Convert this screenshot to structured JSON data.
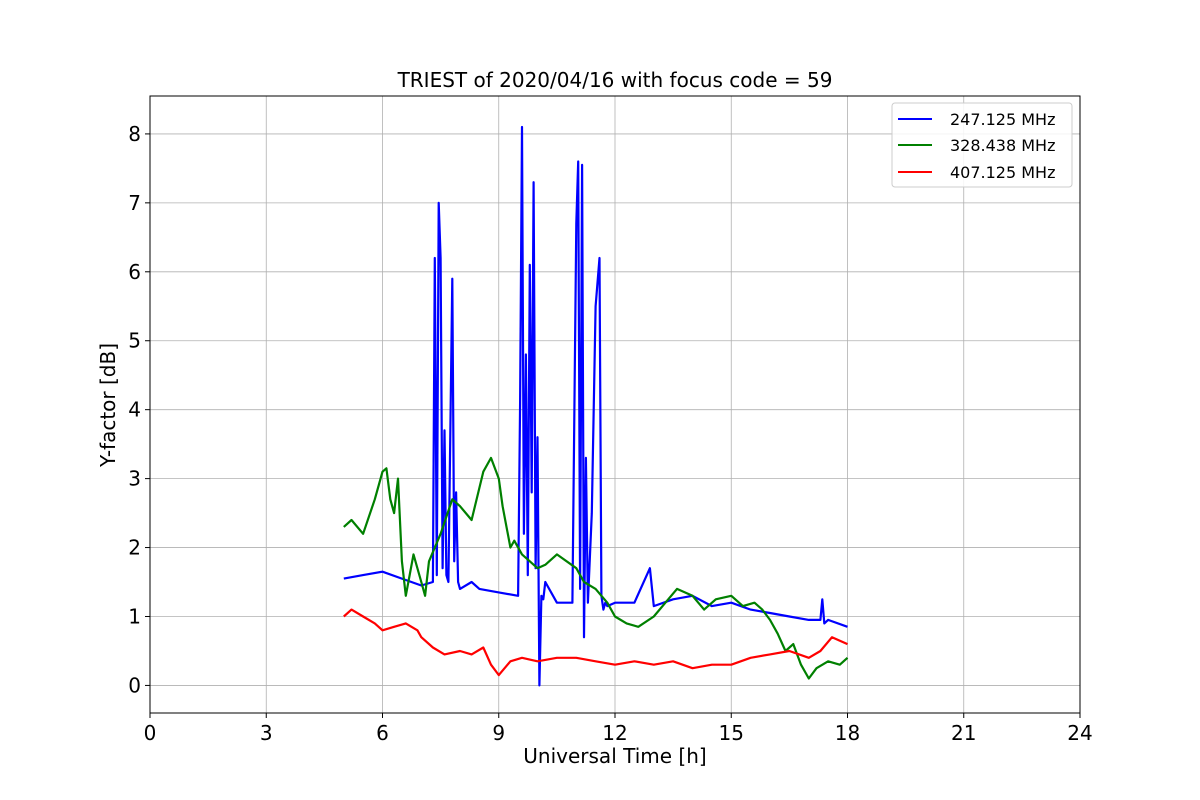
{
  "chart_data": {
    "type": "line",
    "title": "TRIEST of 2020/04/16 with focus code = 59",
    "xlabel": "Universal Time [h]",
    "ylabel": "Y-factor [dB]",
    "xlim": [
      0,
      24
    ],
    "ylim": [
      -0.4,
      8.55
    ],
    "xticks": [
      0,
      3,
      6,
      9,
      12,
      15,
      18,
      21,
      24
    ],
    "yticks": [
      0,
      1,
      2,
      3,
      4,
      5,
      6,
      7,
      8
    ],
    "grid": true,
    "legend_position": "top-right",
    "series": [
      {
        "name": "247.125 MHz",
        "color": "#0000ff",
        "x": [
          5.0,
          5.5,
          6.0,
          6.5,
          7.0,
          7.3,
          7.35,
          7.4,
          7.45,
          7.5,
          7.55,
          7.6,
          7.65,
          7.7,
          7.8,
          7.85,
          7.9,
          7.95,
          8.0,
          8.3,
          8.5,
          9.0,
          9.5,
          9.55,
          9.6,
          9.65,
          9.7,
          9.75,
          9.8,
          9.85,
          9.9,
          9.95,
          10.0,
          10.05,
          10.1,
          10.15,
          10.2,
          10.5,
          10.9,
          11.0,
          11.05,
          11.1,
          11.15,
          11.2,
          11.25,
          11.3,
          11.4,
          11.5,
          11.6,
          11.65,
          11.7,
          11.75,
          11.8,
          12.0,
          12.5,
          12.9,
          13.0,
          13.5,
          14.0,
          14.5,
          15.0,
          15.5,
          16.0,
          16.5,
          17.0,
          17.3,
          17.35,
          17.4,
          17.5,
          18.0
        ],
        "y": [
          1.55,
          1.6,
          1.65,
          1.55,
          1.45,
          1.5,
          6.2,
          1.6,
          7.0,
          6.2,
          1.7,
          3.7,
          1.6,
          1.5,
          5.9,
          1.8,
          2.8,
          1.5,
          1.4,
          1.5,
          1.4,
          1.35,
          1.3,
          4.1,
          8.1,
          2.2,
          4.8,
          1.6,
          6.1,
          2.8,
          7.3,
          1.7,
          3.6,
          0.0,
          1.3,
          1.25,
          1.5,
          1.2,
          1.2,
          6.7,
          7.6,
          1.4,
          7.55,
          0.7,
          3.3,
          1.2,
          2.5,
          5.5,
          6.2,
          1.3,
          1.1,
          1.2,
          1.15,
          1.2,
          1.2,
          1.7,
          1.15,
          1.25,
          1.3,
          1.15,
          1.2,
          1.1,
          1.05,
          1.0,
          0.95,
          0.95,
          1.25,
          0.9,
          0.95,
          0.85
        ]
      },
      {
        "name": "328.438 MHz",
        "color": "#008000",
        "x": [
          5.0,
          5.2,
          5.5,
          5.8,
          6.0,
          6.1,
          6.2,
          6.3,
          6.4,
          6.5,
          6.6,
          6.8,
          7.0,
          7.1,
          7.2,
          7.5,
          7.8,
          8.0,
          8.3,
          8.6,
          8.8,
          9.0,
          9.1,
          9.2,
          9.3,
          9.4,
          9.6,
          9.8,
          10.0,
          10.2,
          10.5,
          11.0,
          11.2,
          11.5,
          11.8,
          12.0,
          12.3,
          12.6,
          13.0,
          13.3,
          13.6,
          14.0,
          14.3,
          14.6,
          15.0,
          15.3,
          15.6,
          15.8,
          16.0,
          16.2,
          16.4,
          16.6,
          16.8,
          17.0,
          17.2,
          17.5,
          17.8,
          18.0
        ],
        "y": [
          2.3,
          2.4,
          2.2,
          2.7,
          3.1,
          3.15,
          2.7,
          2.5,
          3.0,
          1.8,
          1.3,
          1.9,
          1.5,
          1.3,
          1.8,
          2.2,
          2.7,
          2.6,
          2.4,
          3.1,
          3.3,
          3.0,
          2.6,
          2.3,
          2.0,
          2.1,
          1.9,
          1.8,
          1.7,
          1.75,
          1.9,
          1.7,
          1.5,
          1.4,
          1.2,
          1.0,
          0.9,
          0.85,
          1.0,
          1.2,
          1.4,
          1.3,
          1.1,
          1.25,
          1.3,
          1.15,
          1.2,
          1.1,
          0.95,
          0.75,
          0.5,
          0.6,
          0.3,
          0.1,
          0.25,
          0.35,
          0.3,
          0.4
        ]
      },
      {
        "name": "407.125 MHz",
        "color": "#ff0000",
        "x": [
          5.0,
          5.2,
          5.5,
          5.8,
          6.0,
          6.3,
          6.6,
          6.9,
          7.0,
          7.3,
          7.6,
          8.0,
          8.3,
          8.6,
          8.8,
          9.0,
          9.3,
          9.6,
          10.0,
          10.5,
          11.0,
          11.5,
          12.0,
          12.5,
          13.0,
          13.5,
          14.0,
          14.5,
          15.0,
          15.5,
          16.0,
          16.5,
          17.0,
          17.3,
          17.6,
          18.0
        ],
        "y": [
          1.0,
          1.1,
          1.0,
          0.9,
          0.8,
          0.85,
          0.9,
          0.8,
          0.7,
          0.55,
          0.45,
          0.5,
          0.45,
          0.55,
          0.3,
          0.15,
          0.35,
          0.4,
          0.35,
          0.4,
          0.4,
          0.35,
          0.3,
          0.35,
          0.3,
          0.35,
          0.25,
          0.3,
          0.3,
          0.4,
          0.45,
          0.5,
          0.4,
          0.5,
          0.7,
          0.6
        ]
      }
    ]
  }
}
